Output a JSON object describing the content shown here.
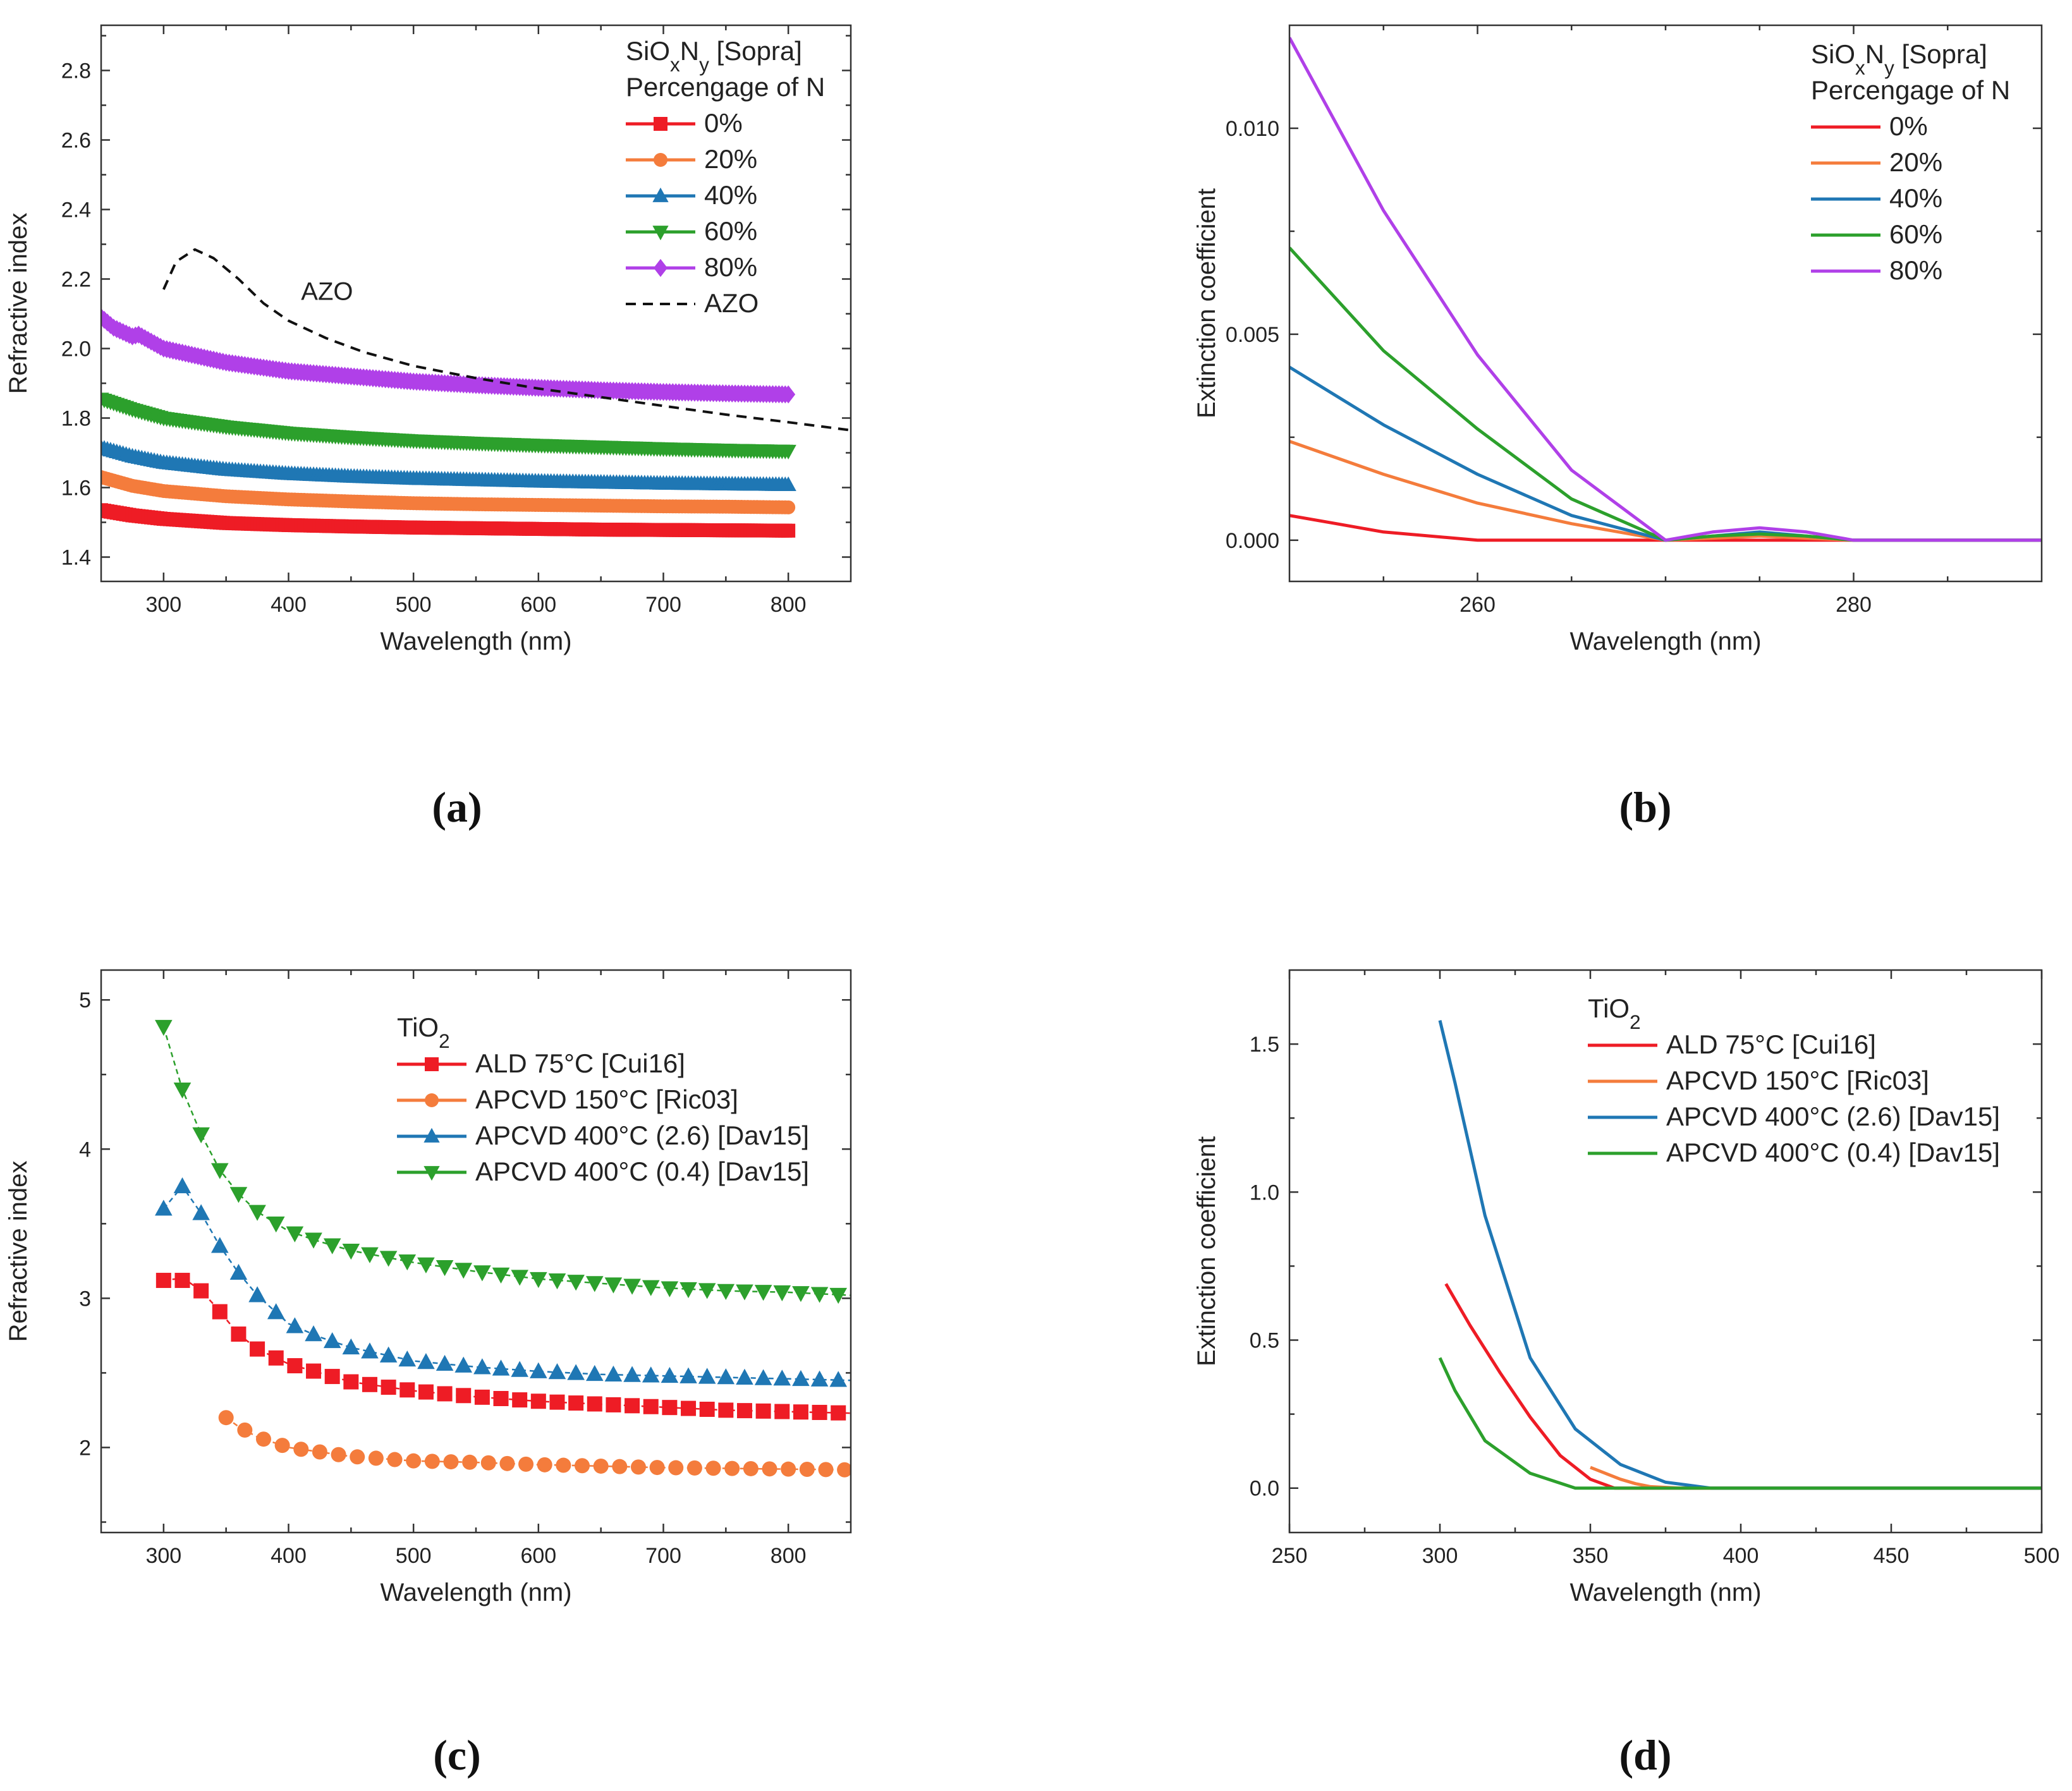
{
  "chart_data": [
    {
      "id": "a",
      "panel_label": "(a)",
      "type": "line",
      "title": "",
      "xlabel": "Wavelength (nm)",
      "ylabel": "Refractive index",
      "xlim": [
        250,
        850
      ],
      "ylim": [
        1.33,
        2.93
      ],
      "xticks": [
        300,
        400,
        500,
        600,
        700,
        800
      ],
      "xtick_labels": [
        "300",
        "400",
        "500",
        "600",
        "700",
        "800"
      ],
      "yticks": [
        1.4,
        1.6,
        1.8,
        2.0,
        2.2,
        2.4,
        2.6,
        2.8
      ],
      "ytick_labels": [
        "1.4",
        "1.6",
        "1.8",
        "2.0",
        "2.2",
        "2.4",
        "2.6",
        "2.8"
      ],
      "legend_title": "SiOxNy [Sopra]",
      "legend_subtitle": "Percengage of N",
      "legend_position": "top-right",
      "series": [
        {
          "name": "0%",
          "color": "#ee1c25",
          "marker": "square",
          "x": [
            250,
            275,
            300,
            350,
            400,
            450,
            500,
            550,
            600,
            650,
            700,
            750,
            800
          ],
          "values": [
            1.535,
            1.52,
            1.51,
            1.498,
            1.492,
            1.488,
            1.485,
            1.483,
            1.481,
            1.479,
            1.478,
            1.477,
            1.476
          ]
        },
        {
          "name": "20%",
          "color": "#f47c3c",
          "marker": "circle",
          "x": [
            250,
            275,
            300,
            350,
            400,
            450,
            500,
            550,
            600,
            650,
            700,
            750,
            800
          ],
          "values": [
            1.63,
            1.605,
            1.59,
            1.575,
            1.566,
            1.56,
            1.555,
            1.552,
            1.55,
            1.548,
            1.546,
            1.545,
            1.543
          ]
        },
        {
          "name": "40%",
          "color": "#1f77b4",
          "marker": "triangle-up",
          "x": [
            250,
            275,
            300,
            350,
            400,
            450,
            500,
            550,
            600,
            650,
            700,
            750,
            800
          ],
          "values": [
            1.715,
            1.69,
            1.672,
            1.652,
            1.64,
            1.632,
            1.626,
            1.622,
            1.618,
            1.615,
            1.612,
            1.61,
            1.608
          ]
        },
        {
          "name": "60%",
          "color": "#2ca02c",
          "marker": "triangle-down",
          "x": [
            250,
            275,
            300,
            350,
            400,
            450,
            500,
            550,
            600,
            650,
            700,
            750,
            800
          ],
          "values": [
            1.855,
            1.825,
            1.8,
            1.775,
            1.757,
            1.745,
            1.735,
            1.728,
            1.722,
            1.717,
            1.712,
            1.708,
            1.705
          ]
        },
        {
          "name": "80%",
          "color": "#b040e8",
          "marker": "diamond",
          "x": [
            250,
            260,
            275,
            280,
            300,
            350,
            400,
            450,
            500,
            550,
            600,
            650,
            700,
            750,
            800
          ],
          "values": [
            2.09,
            2.06,
            2.035,
            2.04,
            2.0,
            1.96,
            1.935,
            1.92,
            1.905,
            1.895,
            1.887,
            1.88,
            1.875,
            1.871,
            1.868
          ]
        },
        {
          "name": "AZO",
          "color": "#111111",
          "marker": "none",
          "dashed": true,
          "x": [
            300,
            310,
            325,
            340,
            360,
            380,
            400,
            430,
            460,
            500,
            550,
            600,
            650,
            700,
            750,
            800,
            850
          ],
          "values": [
            2.17,
            2.25,
            2.285,
            2.26,
            2.2,
            2.13,
            2.08,
            2.03,
            1.99,
            1.95,
            1.915,
            1.885,
            1.86,
            1.835,
            1.81,
            1.788,
            1.765
          ]
        }
      ],
      "annotations": [
        {
          "text": "AZO",
          "x": 410,
          "y": 2.14
        }
      ]
    },
    {
      "id": "b",
      "panel_label": "(b)",
      "type": "line",
      "title": "",
      "xlabel": "Wavelength (nm)",
      "ylabel": "Extinction coefficient",
      "xlim": [
        250,
        290
      ],
      "ylim": [
        -0.001,
        0.0125
      ],
      "xticks": [
        260,
        280
      ],
      "xtick_labels": [
        "260",
        "280"
      ],
      "yticks": [
        0.0,
        0.005,
        0.01
      ],
      "ytick_labels": [
        "0.000",
        "0.005",
        "0.010"
      ],
      "legend_title": "SiOxNy [Sopra]",
      "legend_subtitle": "Percengage of N",
      "legend_position": "top-right",
      "series": [
        {
          "name": "0%",
          "color": "#ee1c25",
          "x": [
            250,
            252.5,
            255,
            260,
            265,
            270,
            275,
            280,
            290
          ],
          "values": [
            0.0006,
            0.0004,
            0.0002,
            0.0,
            0.0,
            0.0,
            0.0,
            0.0,
            0.0
          ]
        },
        {
          "name": "20%",
          "color": "#f47c3c",
          "x": [
            250,
            255,
            260,
            265,
            270,
            272.5,
            275,
            277.5,
            280,
            290
          ],
          "values": [
            0.0024,
            0.0016,
            0.0009,
            0.0004,
            0.0,
            5e-05,
            0.0001,
            5e-05,
            0.0,
            0.0
          ]
        },
        {
          "name": "40%",
          "color": "#1f77b4",
          "x": [
            250,
            255,
            260,
            265,
            270,
            272.5,
            275,
            277.5,
            280,
            290
          ],
          "values": [
            0.0042,
            0.0028,
            0.0016,
            0.0006,
            0.0,
            0.0001,
            0.0002,
            0.0001,
            0.0,
            0.0
          ]
        },
        {
          "name": "60%",
          "color": "#2ca02c",
          "x": [
            250,
            255,
            260,
            265,
            270,
            272.5,
            275,
            277.5,
            280,
            290
          ],
          "values": [
            0.0071,
            0.0046,
            0.0027,
            0.001,
            0.0,
            0.0001,
            0.00015,
            0.0001,
            0.0,
            0.0
          ]
        },
        {
          "name": "80%",
          "color": "#b040e8",
          "x": [
            250,
            255,
            260,
            265,
            270,
            272.5,
            275,
            277.5,
            280,
            290
          ],
          "values": [
            0.0122,
            0.008,
            0.0045,
            0.0017,
            0.0,
            0.0002,
            0.0003,
            0.0002,
            0.0,
            0.0
          ]
        }
      ]
    },
    {
      "id": "c",
      "panel_label": "(c)",
      "type": "line",
      "title": "",
      "xlabel": "Wavelength (nm)",
      "ylabel": "Refractive index",
      "xlim": [
        250,
        850
      ],
      "ylim": [
        1.43,
        5.2
      ],
      "xticks": [
        300,
        400,
        500,
        600,
        700,
        800
      ],
      "xtick_labels": [
        "300",
        "400",
        "500",
        "600",
        "700",
        "800"
      ],
      "yticks": [
        2,
        3,
        4,
        5
      ],
      "ytick_labels": [
        "2",
        "3",
        "4",
        "5"
      ],
      "legend_title": "TiO2",
      "legend_position": "top-center",
      "series": [
        {
          "name": "ALD 75°C [Cui16]",
          "color": "#ee1c25",
          "marker": "square",
          "x": [
            300,
            310,
            320,
            330,
            340,
            350,
            360,
            375,
            400,
            450,
            500,
            550,
            600,
            650,
            700,
            750,
            800,
            850
          ],
          "values": [
            3.12,
            3.13,
            3.11,
            3.05,
            2.96,
            2.86,
            2.76,
            2.66,
            2.56,
            2.44,
            2.38,
            2.34,
            2.31,
            2.29,
            2.27,
            2.25,
            2.24,
            2.23
          ]
        },
        {
          "name": "APCVD 150°C [Ric03]",
          "color": "#f47c3c",
          "marker": "circle",
          "x": [
            350,
            360,
            375,
            400,
            450,
            500,
            550,
            600,
            650,
            700,
            750,
            800,
            850
          ],
          "values": [
            2.2,
            2.14,
            2.07,
            2.0,
            1.94,
            1.91,
            1.9,
            1.885,
            1.875,
            1.865,
            1.86,
            1.855,
            1.85
          ]
        },
        {
          "name": "APCVD 400°C (2.6) [Dav15]",
          "color": "#1f77b4",
          "marker": "triangle-up",
          "x": [
            300,
            315,
            330,
            345,
            360,
            375,
            400,
            425,
            450,
            500,
            550,
            600,
            650,
            700,
            750,
            800,
            850
          ],
          "values": [
            3.6,
            3.75,
            3.57,
            3.35,
            3.17,
            3.02,
            2.83,
            2.74,
            2.67,
            2.58,
            2.54,
            2.51,
            2.49,
            2.48,
            2.47,
            2.46,
            2.45
          ]
        },
        {
          "name": "APCVD 400°C (0.4) [Dav15]",
          "color": "#2ca02c",
          "marker": "triangle-down",
          "x": [
            300,
            315,
            330,
            345,
            360,
            375,
            400,
            425,
            450,
            500,
            550,
            600,
            650,
            700,
            750,
            800,
            850
          ],
          "values": [
            4.82,
            4.4,
            4.1,
            3.86,
            3.7,
            3.58,
            3.45,
            3.38,
            3.32,
            3.24,
            3.18,
            3.13,
            3.1,
            3.07,
            3.05,
            3.04,
            3.02
          ]
        }
      ]
    },
    {
      "id": "d",
      "panel_label": "(d)",
      "type": "line",
      "title": "",
      "xlabel": "Wavelength (nm)",
      "ylabel": "Extinction coefficient",
      "xlim": [
        250,
        500
      ],
      "ylim": [
        -0.15,
        1.75
      ],
      "xticks": [
        250,
        300,
        350,
        400,
        450,
        500
      ],
      "xtick_labels": [
        "250",
        "300",
        "350",
        "400",
        "450",
        "500"
      ],
      "yticks": [
        0.0,
        0.5,
        1.0,
        1.5
      ],
      "ytick_labels": [
        "0.0",
        "0.5",
        "1.0",
        "1.5"
      ],
      "legend_title": "TiO2",
      "legend_position": "top-center",
      "series": [
        {
          "name": "ALD 75°C [Cui16]",
          "color": "#ee1c25",
          "x": [
            302,
            310,
            320,
            330,
            340,
            350,
            358,
            380,
            500
          ],
          "values": [
            0.69,
            0.55,
            0.39,
            0.24,
            0.11,
            0.03,
            0.0,
            0.0,
            0.0
          ]
        },
        {
          "name": "APCVD 150°C [Ric03]",
          "color": "#f47c3c",
          "x": [
            350,
            355,
            360,
            365,
            370,
            380,
            500
          ],
          "values": [
            0.07,
            0.05,
            0.03,
            0.015,
            0.005,
            0.0,
            0.0
          ]
        },
        {
          "name": "APCVD 400°C (2.6) [Dav15]",
          "color": "#1f77b4",
          "x": [
            300,
            305,
            315,
            330,
            345,
            360,
            375,
            390,
            500
          ],
          "values": [
            1.58,
            1.37,
            0.92,
            0.44,
            0.2,
            0.08,
            0.02,
            0.0,
            0.0
          ]
        },
        {
          "name": "APCVD 400°C (0.4) [Dav15]",
          "color": "#2ca02c",
          "x": [
            300,
            305,
            315,
            330,
            345,
            360,
            500
          ],
          "values": [
            0.44,
            0.33,
            0.16,
            0.05,
            0.0,
            0.0,
            0.0
          ]
        }
      ]
    }
  ]
}
